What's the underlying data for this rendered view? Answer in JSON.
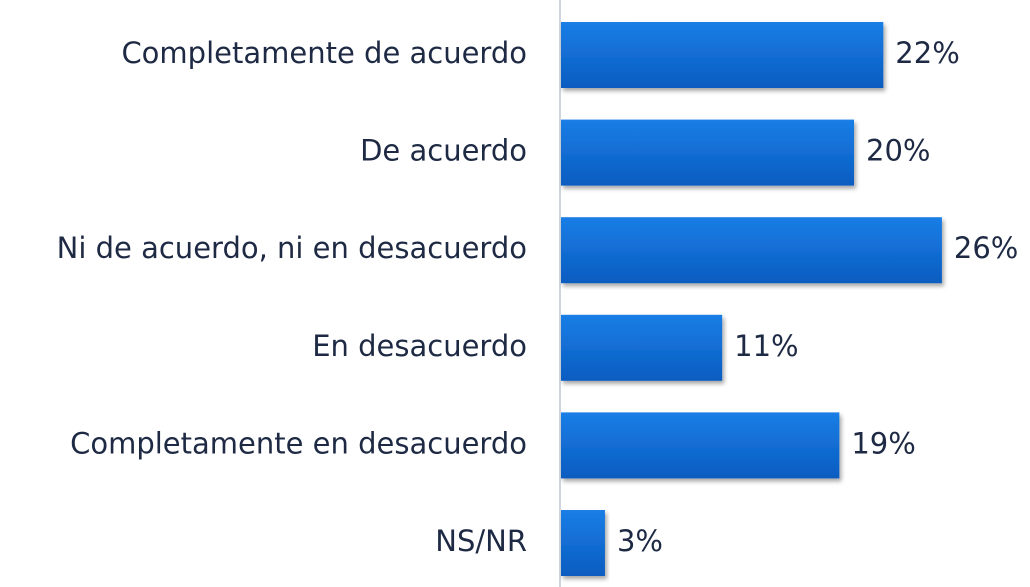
{
  "chart_data": {
    "type": "bar",
    "orientation": "horizontal",
    "categories": [
      "Completamente de acuerdo",
      "De acuerdo",
      "Ni de acuerdo, ni en desacuerdo",
      "En desacuerdo",
      "Completamente en desacuerdo",
      "NS/NR"
    ],
    "values": [
      22,
      20,
      26,
      11,
      19,
      3
    ],
    "value_labels": [
      "22%",
      "20%",
      "26%",
      "11%",
      "19%",
      "3%"
    ],
    "color": "#1a7ee6"
  }
}
